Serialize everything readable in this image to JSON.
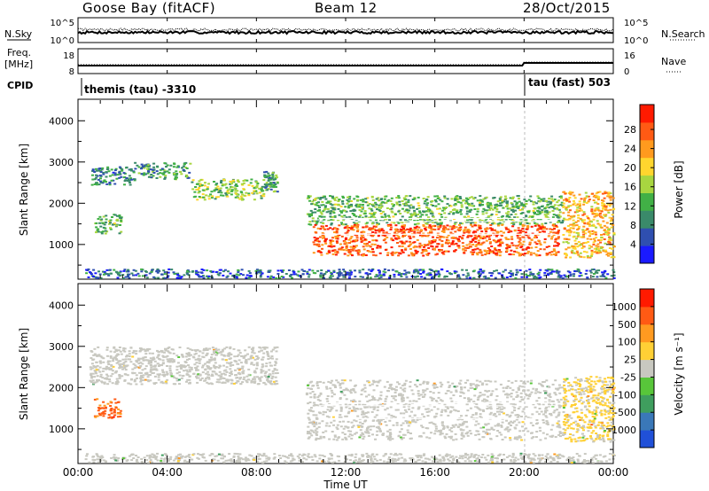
{
  "header": {
    "title": "Goose Bay (fitACF)",
    "beam": "Beam 12",
    "date": "28/Oct/2015"
  },
  "status_panels": {
    "nsky_label": "N.Sky",
    "nsearch_label": "N.Search",
    "noise_ticks": [
      "10^5",
      "10^0"
    ],
    "freq_label": "Freq.",
    "freq_unit": "[MHz]",
    "freq_ticks": [
      "18",
      "8"
    ],
    "nave_label": "Nave",
    "nave_ticks": [
      "16",
      "0"
    ],
    "cpid_label": "CPID",
    "cpid_left": "themis (tau) -3310",
    "cpid_right": "tau (fast) 503",
    "cpid_change_hour": 20.0
  },
  "chart_data": [
    {
      "type": "heatmap",
      "panel": "power",
      "ylabel": "Slant Range [km]",
      "xlabel": "Time UT",
      "xlim": [
        0,
        24
      ],
      "ylim": [
        180,
        4500
      ],
      "yticks": [
        1000,
        2000,
        3000,
        4000
      ],
      "xtick_labels": [
        "00:00",
        "04:00",
        "08:00",
        "12:00",
        "16:00",
        "20:00",
        "00:00"
      ],
      "colorbar": {
        "label": "Power [dB]",
        "tick_labels": [
          "4",
          "8",
          "12",
          "16",
          "20",
          "24",
          "28"
        ],
        "range": [
          0,
          30
        ],
        "colors": [
          "#1a1aff",
          "#2f4fb0",
          "#3a8a6a",
          "#41b046",
          "#a8d640",
          "#ffd62e",
          "#ff9a1e",
          "#ff5a14",
          "#ff1a00"
        ]
      },
      "echo_regions": [
        {
          "t0": 0.7,
          "t1": 1.9,
          "r0": 1280,
          "r1": 1750,
          "value": 12
        },
        {
          "t0": 0.5,
          "t1": 2.5,
          "r0": 2450,
          "r1": 2900,
          "value": 8
        },
        {
          "t0": 2.5,
          "t1": 5.0,
          "r0": 2600,
          "r1": 3000,
          "value": 10
        },
        {
          "t0": 5.0,
          "t1": 8.3,
          "r0": 2100,
          "r1": 2600,
          "value": 14
        },
        {
          "t0": 8.3,
          "t1": 8.9,
          "r0": 2300,
          "r1": 2800,
          "value": 10
        },
        {
          "t0": 10.2,
          "t1": 21.7,
          "r0": 1500,
          "r1": 2200,
          "value": 12
        },
        {
          "t0": 10.5,
          "t1": 21.5,
          "r0": 750,
          "r1": 1500,
          "value": 25
        },
        {
          "t0": 21.7,
          "t1": 24.0,
          "r0": 700,
          "r1": 2300,
          "value": 20
        },
        {
          "t0": 0.3,
          "t1": 24.0,
          "r0": 200,
          "r1": 420,
          "value": 6
        }
      ]
    },
    {
      "type": "heatmap",
      "panel": "velocity",
      "ylabel": "Slant Range [km]",
      "xlabel": "Time UT",
      "xlim": [
        0,
        24
      ],
      "ylim": [
        180,
        4500
      ],
      "yticks": [
        1000,
        2000,
        3000,
        4000
      ],
      "xtick_labels": [
        "00:00",
        "04:00",
        "08:00",
        "12:00",
        "16:00",
        "20:00",
        "00:00"
      ],
      "colorbar": {
        "label": "Velocity [m s⁻¹]",
        "tick_labels": [
          "1000",
          "500",
          "100",
          "25",
          "-25",
          "-100",
          "-500",
          "-1000"
        ],
        "range": [
          -1200,
          1200
        ],
        "colors": [
          "#2050d8",
          "#3a78b8",
          "#3f9e5e",
          "#58c63a",
          "#c8c8c0",
          "#ffd035",
          "#ff9a20",
          "#ff5a14",
          "#ff1a00"
        ]
      },
      "echo_regions": [
        {
          "t0": 0.7,
          "t1": 1.9,
          "r0": 1280,
          "r1": 1750,
          "value": 700
        },
        {
          "t0": 0.5,
          "t1": 8.9,
          "r0": 2100,
          "r1": 3000,
          "value": 0
        },
        {
          "t0": 10.2,
          "t1": 21.7,
          "r0": 750,
          "r1": 2200,
          "value": 0
        },
        {
          "t0": 21.7,
          "t1": 24.0,
          "r0": 700,
          "r1": 2300,
          "value": 150
        },
        {
          "t0": 0.3,
          "t1": 24.0,
          "r0": 200,
          "r1": 420,
          "value": 0
        }
      ]
    }
  ]
}
